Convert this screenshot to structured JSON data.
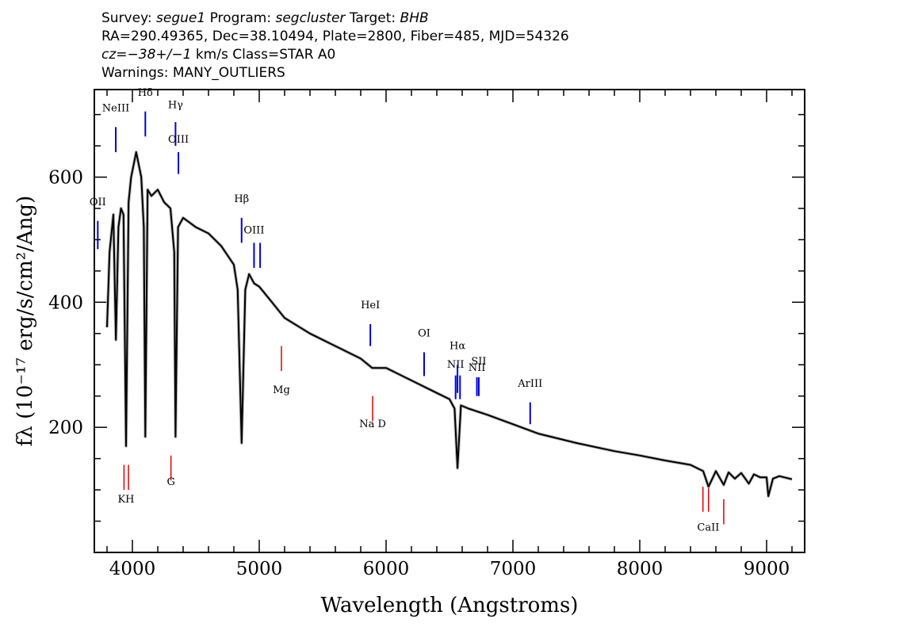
{
  "header": {
    "survey_label": "Survey:",
    "survey": "segue1",
    "program_label": "Program:",
    "program": "segcluster",
    "target_label": "Target:",
    "target": "BHB",
    "coords": "RA=290.49365, Dec=38.10494, Plate=2800, Fiber=485, MJD=54326",
    "cz_label": "cz",
    "cz": "=−38+/−1",
    "cz_rest": " km/s Class=STAR A0",
    "warnings": "Warnings: MANY_OUTLIERS"
  },
  "chart_data": {
    "type": "line",
    "xlabel": "Wavelength (Angstroms)",
    "ylabel": "fλ (10⁻¹⁷ erg/s/cm²/Ang)",
    "xlim": [
      3700,
      9300
    ],
    "ylim": [
      0,
      740
    ],
    "x_ticks": [
      4000,
      5000,
      6000,
      7000,
      8000,
      9000
    ],
    "y_ticks": [
      200,
      400,
      600
    ],
    "grid": false,
    "series": [
      {
        "color": "#000000",
        "x": [
          3800,
          3820,
          3850,
          3870,
          3890,
          3910,
          3930,
          3950,
          3970,
          3990,
          4010,
          4030,
          4050,
          4070,
          4090,
          4102,
          4120,
          4150,
          4200,
          4250,
          4300,
          4330,
          4340,
          4360,
          4400,
          4500,
          4600,
          4700,
          4800,
          4830,
          4861,
          4890,
          4920,
          4960,
          5000,
          5100,
          5200,
          5400,
          5600,
          5800,
          5890,
          6000,
          6200,
          6400,
          6500,
          6540,
          6563,
          6590,
          6650,
          6800,
          7000,
          7200,
          7500,
          7800,
          8000,
          8200,
          8400,
          8500,
          8542,
          8600,
          8662,
          8700,
          8750,
          8800,
          8860,
          8900,
          8950,
          9000,
          9014,
          9050,
          9100,
          9200
        ],
        "y": [
          360,
          480,
          540,
          340,
          520,
          550,
          540,
          170,
          560,
          600,
          620,
          640,
          620,
          600,
          520,
          185,
          580,
          570,
          580,
          560,
          550,
          480,
          185,
          520,
          535,
          520,
          510,
          490,
          460,
          420,
          175,
          420,
          445,
          430,
          425,
          400,
          375,
          350,
          330,
          310,
          295,
          295,
          275,
          255,
          245,
          230,
          135,
          235,
          230,
          220,
          205,
          190,
          175,
          162,
          155,
          147,
          140,
          130,
          105,
          130,
          108,
          128,
          118,
          127,
          110,
          125,
          120,
          120,
          90,
          118,
          122,
          117
        ]
      }
    ],
    "emission_lines": [
      {
        "name": "OII",
        "x": 3727,
        "label_y": 555,
        "tick_top": 530,
        "tick_bot": 485
      },
      {
        "name": "NeIII",
        "x": 3869,
        "label_y": 705,
        "tick_top": 680,
        "tick_bot": 640
      },
      {
        "name": "Hδ",
        "x": 4102,
        "label_y": 730,
        "tick_top": 705,
        "tick_bot": 665
      },
      {
        "name": "Hγ",
        "x": 4340,
        "label_y": 710,
        "tick_top": 688,
        "tick_bot": 650
      },
      {
        "name": "OIII",
        "x": 4363,
        "label_y": 655,
        "tick_top": 640,
        "tick_bot": 605
      },
      {
        "name": "Hβ",
        "x": 4861,
        "label_y": 560,
        "tick_top": 535,
        "tick_bot": 495
      },
      {
        "name": "OIII",
        "x": 4959,
        "label_y": 510,
        "tick_top": 495,
        "tick_bot": 455
      },
      {
        "name": "",
        "x": 5007,
        "label_y": 0,
        "tick_top": 495,
        "tick_bot": 455
      },
      {
        "name": "HeI",
        "x": 5876,
        "label_y": 390,
        "tick_top": 365,
        "tick_bot": 330
      },
      {
        "name": "OI",
        "x": 6300,
        "label_y": 345,
        "tick_top": 320,
        "tick_bot": 282
      },
      {
        "name": "NII",
        "x": 6548,
        "label_y": 295,
        "tick_top": 283,
        "tick_bot": 245
      },
      {
        "name": "Hα",
        "x": 6563,
        "label_y": 325,
        "tick_top": 300,
        "tick_bot": 255
      },
      {
        "name": "",
        "x": 6583,
        "label_y": 0,
        "tick_top": 283,
        "tick_bot": 245
      },
      {
        "name": "NII",
        "x": 6716,
        "label_y": 290,
        "tick_top": 280,
        "tick_bot": 250
      },
      {
        "name": "SII",
        "x": 6731,
        "label_y": 300,
        "tick_top": 280,
        "tick_bot": 250
      },
      {
        "name": "ArIII",
        "x": 7136,
        "label_y": 265,
        "tick_top": 240,
        "tick_bot": 205
      }
    ],
    "absorption_lines": [
      {
        "name": "KH",
        "x": 3950,
        "label_y": 80,
        "ticks": [
          3934,
          3969
        ],
        "tick_top": 140,
        "tick_bot": 100
      },
      {
        "name": "G",
        "x": 4304,
        "label_y": 108,
        "ticks": [
          4304
        ],
        "tick_top": 155,
        "tick_bot": 115
      },
      {
        "name": "Mg",
        "x": 5175,
        "label_y": 255,
        "ticks": [
          5175
        ],
        "tick_top": 330,
        "tick_bot": 290
      },
      {
        "name": "Na  D",
        "x": 5894,
        "label_y": 200,
        "ticks": [
          5894
        ],
        "tick_top": 250,
        "tick_bot": 210
      },
      {
        "name": "CaII",
        "x": 8540,
        "label_y": 35,
        "ticks": [
          8498,
          8542
        ],
        "tick_top": 105,
        "tick_bot": 65
      },
      {
        "name": "",
        "x": 8662,
        "label_y": 0,
        "ticks": [
          8662
        ],
        "tick_top": 85,
        "tick_bot": 45
      }
    ],
    "emission_color": "#0000dd",
    "absorption_color": "#dd0000"
  }
}
